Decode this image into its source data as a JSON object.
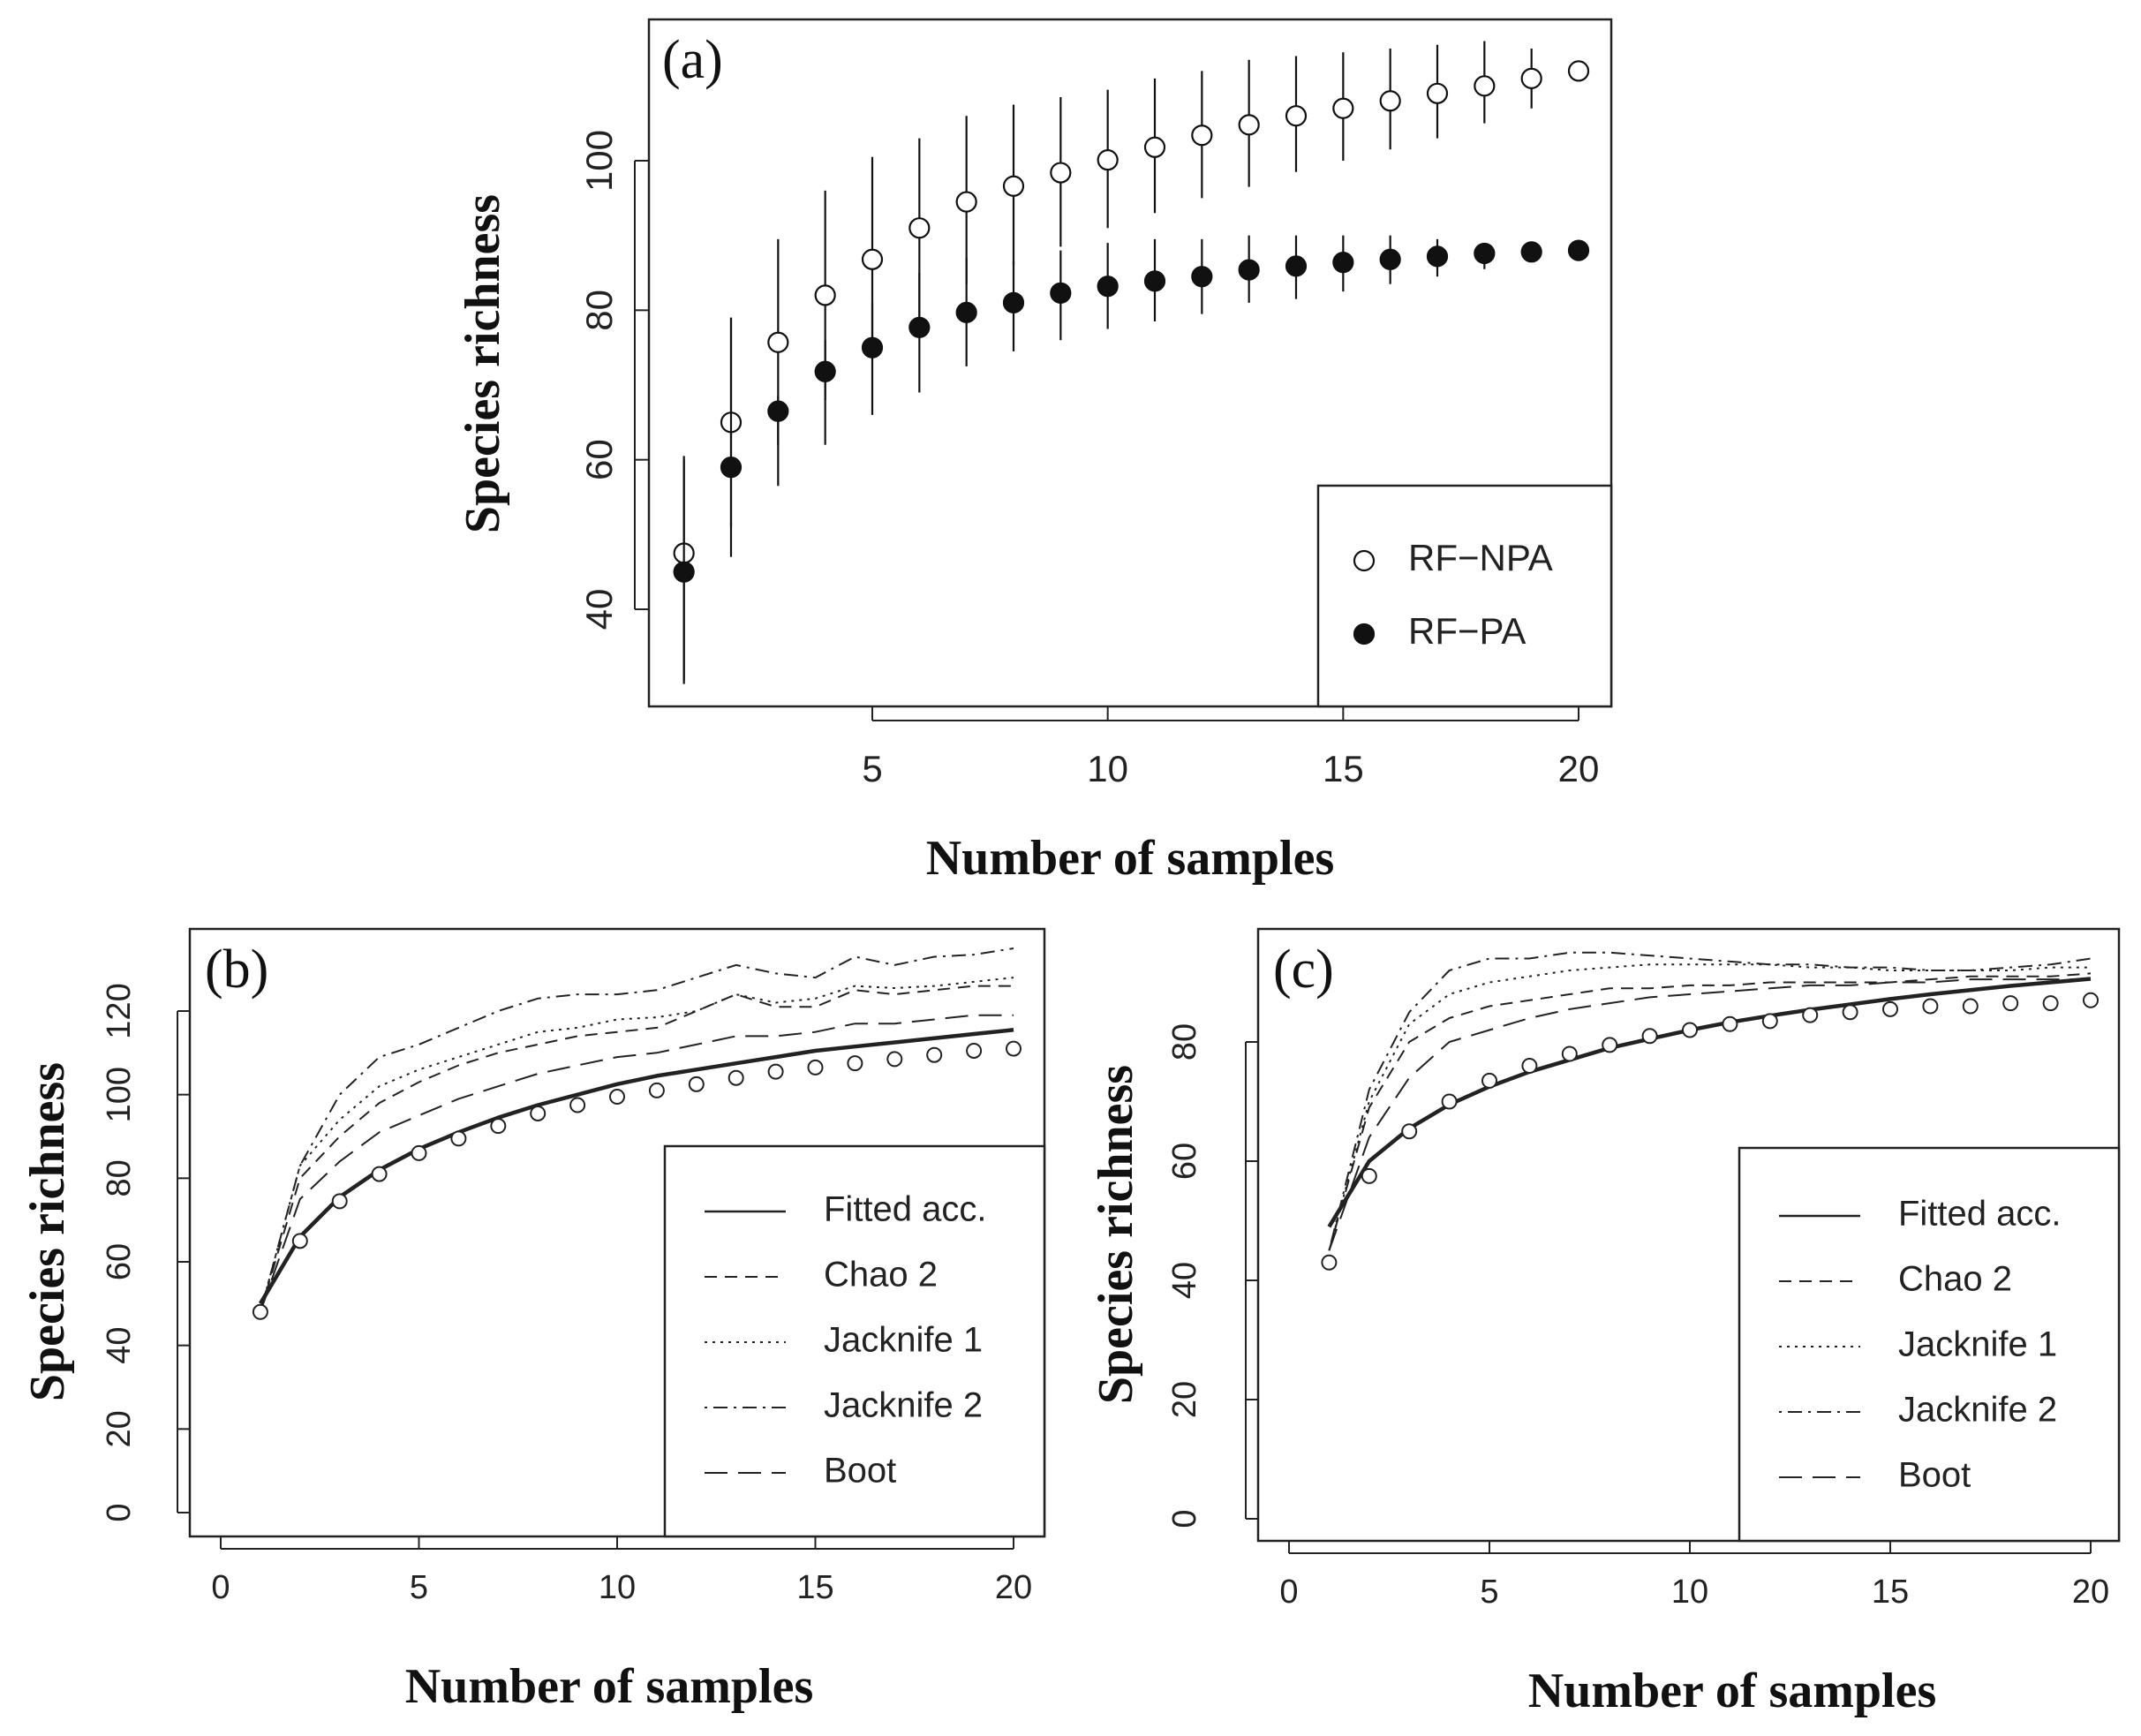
{
  "chart_data": [
    {
      "panel": "(a)",
      "type": "scatter",
      "xlabel": "Number of samples",
      "ylabel": "Species richness",
      "xlim": [
        0,
        21
      ],
      "ylim": [
        27,
        119
      ],
      "xticks": [
        "5",
        "10",
        "15",
        "20"
      ],
      "yticks": [
        "40",
        "60",
        "80",
        "100"
      ],
      "legend": {
        "position": "bottom-right",
        "entries": [
          "RF−NPA",
          "RF−PA"
        ]
      },
      "series": [
        {
          "name": "RF−NPA",
          "marker": "open-circle",
          "x": [
            1,
            2,
            3,
            4,
            5,
            6,
            7,
            8,
            9,
            10,
            11,
            12,
            13,
            14,
            15,
            16,
            17,
            18,
            19,
            20
          ],
          "values": [
            47.5,
            65,
            75.7,
            82,
            86.8,
            91,
            94.5,
            96.6,
            98.4,
            100.1,
            101.8,
            103.4,
            104.8,
            106,
            107,
            108,
            109,
            110,
            111,
            112
          ],
          "err_low": [
            30.5,
            51,
            62,
            68,
            73.5,
            79,
            83.5,
            86,
            88.5,
            91,
            93,
            95,
            96.5,
            98.5,
            100,
            101.5,
            103,
            105,
            107,
            112
          ],
          "err_high": [
            60.5,
            79,
            89.5,
            96,
            100.5,
            103,
            106,
            107.5,
            108.5,
            109.5,
            111,
            112,
            113.5,
            114,
            114.5,
            115,
            115.5,
            116,
            115,
            112
          ]
        },
        {
          "name": "RF−PA",
          "marker": "filled-circle",
          "x": [
            1,
            2,
            3,
            4,
            5,
            6,
            7,
            8,
            9,
            10,
            11,
            12,
            13,
            14,
            15,
            16,
            17,
            18,
            19,
            20
          ],
          "values": [
            45,
            59,
            66.5,
            71.8,
            75,
            77.7,
            79.7,
            81,
            82.3,
            83.2,
            83.9,
            84.5,
            85.4,
            85.9,
            86.4,
            86.8,
            87.2,
            87.6,
            87.8,
            88
          ],
          "err_low": [
            30,
            47,
            56.5,
            62,
            66,
            69,
            72.5,
            74.5,
            76,
            77.5,
            78.5,
            79.5,
            81,
            81.5,
            82.5,
            83.5,
            84.5,
            85.5,
            87,
            88
          ],
          "err_high": [
            60,
            79,
            68.5,
            76,
            81,
            85,
            87,
            86.5,
            88,
            89,
            89.5,
            89.5,
            90,
            90,
            90,
            90,
            89.5,
            89,
            88.5,
            88
          ]
        }
      ]
    },
    {
      "panel": "(b)",
      "type": "line",
      "xlabel": "Number of samples",
      "ylabel": "Species richness",
      "xlim": [
        -1.5,
        21
      ],
      "ylim": [
        -5,
        137
      ],
      "xticks": [
        "0",
        "5",
        "10",
        "15",
        "20"
      ],
      "yticks": [
        "0",
        "20",
        "40",
        "60",
        "80",
        "100",
        "120"
      ],
      "legend": {
        "position": "bottom-right",
        "entries": [
          "Fitted acc.",
          "Chao 2",
          "Jacknife 1",
          "Jacknife 2",
          "Boot"
        ]
      },
      "x": [
        1,
        2,
        3,
        4,
        5,
        6,
        7,
        8,
        9,
        10,
        11,
        12,
        13,
        14,
        15,
        16,
        17,
        18,
        19,
        20
      ],
      "points": {
        "name": "observed",
        "marker": "open-circle",
        "values": [
          48,
          65,
          74.5,
          81,
          86,
          89.5,
          92.5,
          95.5,
          97.5,
          99.5,
          101,
          102.5,
          104,
          105.5,
          106.5,
          107.5,
          108.5,
          109.5,
          110.5,
          111
        ]
      },
      "series": [
        {
          "name": "Fitted acc.",
          "style": "solid",
          "values": [
            50,
            66,
            75.5,
            82,
            87,
            91,
            94.5,
            97.5,
            100,
            102.5,
            104.5,
            106,
            107.5,
            109,
            110.5,
            111.5,
            112.5,
            113.5,
            114.5,
            115.5
          ]
        },
        {
          "name": "Chao 2",
          "style": "dashed",
          "values": [
            48,
            80,
            90,
            98,
            103,
            107,
            110,
            112,
            114,
            115,
            116,
            120,
            124,
            121,
            121,
            125,
            124,
            125,
            126,
            126
          ]
        },
        {
          "name": "Jacknife 1",
          "style": "dotted",
          "values": [
            48,
            83,
            94,
            102,
            106,
            109,
            112,
            115,
            116,
            118,
            118.5,
            120,
            124,
            122,
            123,
            126,
            125.5,
            126,
            127,
            128
          ]
        },
        {
          "name": "Jacknife 2",
          "style": "dashdot",
          "values": [
            48,
            83,
            100,
            109,
            112,
            116,
            120,
            123,
            124,
            124,
            125,
            128,
            131,
            129,
            128,
            133,
            131,
            133,
            133.5,
            135
          ]
        },
        {
          "name": "Boot",
          "style": "longdash",
          "values": [
            48,
            75,
            84,
            91,
            95,
            99,
            102,
            105,
            107,
            109,
            110,
            112,
            114,
            114,
            115,
            117,
            117,
            118,
            119,
            119
          ]
        }
      ]
    },
    {
      "panel": "(c)",
      "type": "line",
      "xlabel": "Number of samples",
      "ylabel": "Species richness",
      "xlim": [
        -1,
        21
      ],
      "ylim": [
        -4,
        97
      ],
      "xticks": [
        "0",
        "5",
        "10",
        "15",
        "20"
      ],
      "yticks": [
        "0",
        "20",
        "40",
        "60",
        "80"
      ],
      "legend": {
        "position": "bottom-right",
        "entries": [
          "Fitted acc.",
          "Chao 2",
          "Jacknife 1",
          "Jacknife 2",
          "Boot"
        ]
      },
      "x": [
        1,
        2,
        3,
        4,
        5,
        6,
        7,
        8,
        9,
        10,
        11,
        12,
        13,
        14,
        15,
        16,
        17,
        18,
        19,
        20
      ],
      "points": {
        "name": "observed",
        "marker": "open-circle",
        "values": [
          43,
          57.5,
          65,
          70,
          73.5,
          76,
          78,
          79.5,
          81,
          82,
          83,
          83.5,
          84.5,
          85,
          85.5,
          86,
          86,
          86.5,
          86.5,
          87
        ]
      },
      "series": [
        {
          "name": "Fitted acc.",
          "style": "solid",
          "values": [
            49,
            60,
            65.5,
            69.5,
            72.5,
            75,
            77,
            79,
            80.5,
            82,
            83.3,
            84.4,
            85.4,
            86.3,
            87.2,
            88,
            88.7,
            89.4,
            90,
            90.6
          ]
        },
        {
          "name": "Chao 2",
          "style": "dashed",
          "values": [
            45,
            69,
            80,
            84,
            86,
            87,
            88,
            89,
            89,
            89.5,
            89.5,
            90,
            90,
            90,
            90,
            90.5,
            91,
            91,
            91,
            91.5
          ]
        },
        {
          "name": "Jacknife 1",
          "style": "dotted",
          "values": [
            45,
            70,
            83,
            88,
            90,
            91,
            92,
            92.5,
            93,
            93,
            93,
            93,
            92.5,
            92.5,
            92,
            92,
            92,
            92,
            92.5,
            92.5
          ]
        },
        {
          "name": "Jacknife 2",
          "style": "dashdot",
          "values": [
            45,
            72,
            85,
            92,
            94,
            94,
            95,
            95,
            94.5,
            94,
            93.5,
            93,
            93,
            92.5,
            92.5,
            92,
            92,
            92.5,
            93,
            94
          ]
        },
        {
          "name": "Boot",
          "style": "longdash",
          "values": [
            45,
            64,
            74,
            80,
            82,
            84,
            85.5,
            86.5,
            87.5,
            88,
            88.5,
            89,
            89.5,
            89.5,
            90,
            90,
            90.5,
            90.5,
            90.5,
            90.5
          ]
        }
      ]
    }
  ]
}
